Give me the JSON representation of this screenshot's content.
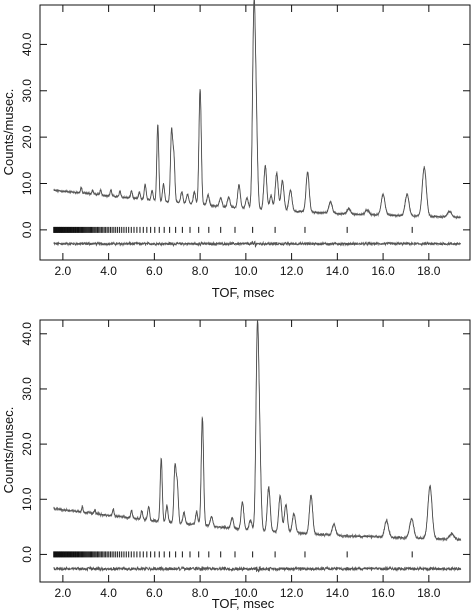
{
  "chart_data": [
    {
      "type": "line",
      "title": "",
      "xlabel": "TOF, msec",
      "ylabel": "Counts/musec.",
      "xlim": [
        1.0,
        19.8
      ],
      "ylim": [
        -6.5,
        48.5
      ],
      "xticks": [
        "2.0",
        "4.0",
        "6.0",
        "8.0",
        "10.0",
        "12.0",
        "14.0",
        "16.0",
        "18.0"
      ],
      "yticks": [
        "0.0",
        "10.0",
        "20.0",
        "30.0",
        "40.0"
      ],
      "yticks_values": [
        0,
        10,
        20,
        30,
        40
      ],
      "xticks_values": [
        2,
        4,
        6,
        8,
        10,
        12,
        14,
        16,
        18
      ],
      "background": {
        "x": [
          1.6,
          3.0,
          6.0,
          10.0,
          14.0,
          17.0,
          19.5
        ],
        "y": [
          8.5,
          7.9,
          6.3,
          4.6,
          3.5,
          3.0,
          2.7
        ]
      },
      "peaks": [
        {
          "x": 2.8,
          "h": 1.2
        },
        {
          "x": 3.3,
          "h": 0.8
        },
        {
          "x": 3.65,
          "h": 1.0
        },
        {
          "x": 4.1,
          "h": 1.3
        },
        {
          "x": 4.5,
          "h": 1.2
        },
        {
          "x": 5.0,
          "h": 1.6
        },
        {
          "x": 5.35,
          "h": 1.4
        },
        {
          "x": 5.6,
          "h": 3.3
        },
        {
          "x": 5.9,
          "h": 2.2
        },
        {
          "x": 6.15,
          "h": 16.5
        },
        {
          "x": 6.4,
          "h": 3.8
        },
        {
          "x": 6.75,
          "h": 15.0
        },
        {
          "x": 6.85,
          "h": 10.0
        },
        {
          "x": 7.2,
          "h": 2.4
        },
        {
          "x": 7.45,
          "h": 2.0
        },
        {
          "x": 7.75,
          "h": 2.6
        },
        {
          "x": 8.0,
          "h": 25.0
        },
        {
          "x": 8.35,
          "h": 2.2
        },
        {
          "x": 8.9,
          "h": 1.8
        },
        {
          "x": 9.25,
          "h": 2.2
        },
        {
          "x": 9.7,
          "h": 5.0
        },
        {
          "x": 10.05,
          "h": 2.2
        },
        {
          "x": 10.35,
          "h": 40.0
        },
        {
          "x": 10.45,
          "h": 18.0
        },
        {
          "x": 10.85,
          "h": 9.5
        },
        {
          "x": 11.1,
          "h": 3.0
        },
        {
          "x": 11.35,
          "h": 8.0
        },
        {
          "x": 11.6,
          "h": 6.5
        },
        {
          "x": 11.95,
          "h": 4.5
        },
        {
          "x": 12.7,
          "h": 8.5
        },
        {
          "x": 13.7,
          "h": 2.5
        },
        {
          "x": 14.5,
          "h": 1.2
        },
        {
          "x": 15.3,
          "h": 1.0
        },
        {
          "x": 16.0,
          "h": 4.5
        },
        {
          "x": 17.05,
          "h": 4.6
        },
        {
          "x": 17.8,
          "h": 10.5
        },
        {
          "x": 18.9,
          "h": 1.2
        }
      ],
      "difference_offset": -3.0,
      "reflection_y": 0.0,
      "reflection_x": [
        1.6,
        19.4
      ],
      "series": [
        {
          "values": "observed"
        },
        {
          "values": "calculated"
        },
        {
          "values": "difference"
        }
      ]
    },
    {
      "type": "line",
      "title": "",
      "xlabel": "TOF, msec",
      "ylabel": "Counts/musec.",
      "xlim": [
        1.0,
        19.8
      ],
      "ylim": [
        -5.0,
        42.5
      ],
      "xticks": [
        "2.0",
        "4.0",
        "6.0",
        "8.0",
        "10.0",
        "12.0",
        "14.0",
        "16.0",
        "18.0"
      ],
      "yticks": [
        "0.0",
        "10.0",
        "20.0",
        "30.0",
        "40.0"
      ],
      "yticks_values": [
        0,
        10,
        20,
        30,
        40
      ],
      "xticks_values": [
        2,
        4,
        6,
        8,
        10,
        12,
        14,
        16,
        18
      ],
      "background": {
        "x": [
          1.6,
          3.0,
          6.0,
          10.0,
          14.0,
          17.0,
          19.5
        ],
        "y": [
          8.3,
          7.6,
          6.1,
          4.5,
          3.4,
          3.0,
          2.7
        ]
      },
      "peaks": [
        {
          "x": 2.85,
          "h": 1.0
        },
        {
          "x": 3.4,
          "h": 0.7
        },
        {
          "x": 4.2,
          "h": 1.2
        },
        {
          "x": 5.0,
          "h": 1.4
        },
        {
          "x": 5.45,
          "h": 1.5
        },
        {
          "x": 5.75,
          "h": 2.5
        },
        {
          "x": 6.3,
          "h": 11.5
        },
        {
          "x": 6.55,
          "h": 3.0
        },
        {
          "x": 6.9,
          "h": 10.0
        },
        {
          "x": 7.0,
          "h": 7.0
        },
        {
          "x": 7.3,
          "h": 2.0
        },
        {
          "x": 7.85,
          "h": 2.3
        },
        {
          "x": 8.1,
          "h": 19.5
        },
        {
          "x": 8.5,
          "h": 1.8
        },
        {
          "x": 9.4,
          "h": 2.0
        },
        {
          "x": 9.85,
          "h": 5.0
        },
        {
          "x": 10.2,
          "h": 1.8
        },
        {
          "x": 10.5,
          "h": 34.0
        },
        {
          "x": 10.6,
          "h": 14.0
        },
        {
          "x": 11.0,
          "h": 8.0
        },
        {
          "x": 11.5,
          "h": 6.5
        },
        {
          "x": 11.75,
          "h": 5.0
        },
        {
          "x": 12.1,
          "h": 3.5
        },
        {
          "x": 12.85,
          "h": 7.0
        },
        {
          "x": 13.85,
          "h": 2.0
        },
        {
          "x": 16.15,
          "h": 3.0
        },
        {
          "x": 17.25,
          "h": 3.5
        },
        {
          "x": 18.05,
          "h": 9.5
        },
        {
          "x": 19.0,
          "h": 1.0
        }
      ],
      "difference_offset": -2.6,
      "reflection_y": 0.0,
      "reflection_x": [
        1.6,
        19.4
      ],
      "series": [
        {
          "values": "observed"
        },
        {
          "values": "calculated"
        },
        {
          "values": "difference"
        }
      ]
    }
  ]
}
